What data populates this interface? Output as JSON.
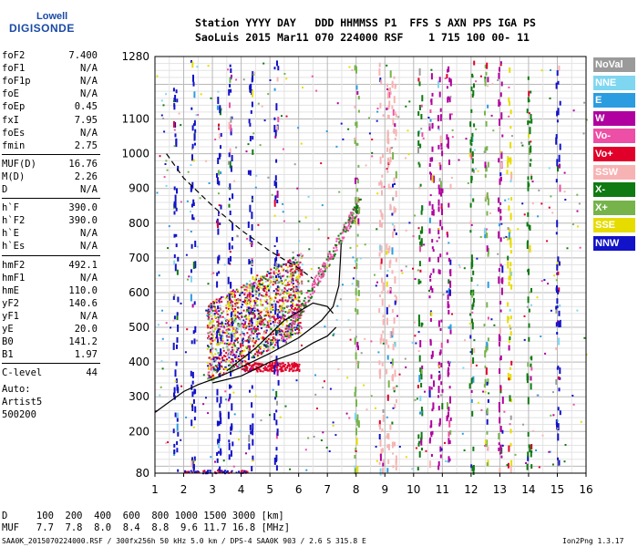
{
  "logo": {
    "line1": "Lowell",
    "line2": "DIGISONDE"
  },
  "header": {
    "row1": "Station YYYY DAY   DDD HHMMSS P1  FFS S AXN PPS IGA PS",
    "row2": "SaoLuis 2015 Mar11 070 224000 RSF    1 715 100 00- 11"
  },
  "params": [
    {
      "label": "foF2",
      "value": "7.400"
    },
    {
      "label": "foF1",
      "value": "N/A"
    },
    {
      "label": "foF1p",
      "value": "N/A"
    },
    {
      "label": "foE",
      "value": "N/A"
    },
    {
      "label": "foEp",
      "value": "0.45"
    },
    {
      "label": "fxI",
      "value": "7.95"
    },
    {
      "label": "foEs",
      "value": "N/A"
    },
    {
      "label": "fmin",
      "value": "2.75"
    },
    {
      "label": "MUF(D)",
      "value": "16.76"
    },
    {
      "label": "M(D)",
      "value": "2.26"
    },
    {
      "label": "D",
      "value": "N/A"
    },
    {
      "label": "h`F",
      "value": "390.0"
    },
    {
      "label": "h`F2",
      "value": "390.0"
    },
    {
      "label": "h`E",
      "value": "N/A"
    },
    {
      "label": "h`Es",
      "value": "N/A"
    },
    {
      "label": "hmF2",
      "value": "492.1"
    },
    {
      "label": "hmF1",
      "value": "N/A"
    },
    {
      "label": "hmE",
      "value": "110.0"
    },
    {
      "label": "yF2",
      "value": "140.6"
    },
    {
      "label": "yF1",
      "value": "N/A"
    },
    {
      "label": "yE",
      "value": "20.0"
    },
    {
      "label": "B0",
      "value": "141.2"
    },
    {
      "label": "B1",
      "value": "1.97"
    },
    {
      "label": "C-level",
      "value": "44"
    }
  ],
  "autoscaling": {
    "line1": "Auto:",
    "line2": "Artist5",
    "line3": "500200"
  },
  "legend": [
    {
      "label": "NoVal",
      "color": "#9a9a9a"
    },
    {
      "label": "NNE",
      "color": "#7fd6f0"
    },
    {
      "label": "E",
      "color": "#2b9ce0"
    },
    {
      "label": "W",
      "color": "#b0009f"
    },
    {
      "label": "Vo-",
      "color": "#ee4fa6"
    },
    {
      "label": "Vo+",
      "color": "#e0002a"
    },
    {
      "label": "SSW",
      "color": "#f7b3b3"
    },
    {
      "label": "X-",
      "color": "#0f7a12"
    },
    {
      "label": "X+",
      "color": "#76b44b"
    },
    {
      "label": "SSE",
      "color": "#e6dc00"
    },
    {
      "label": "NNW",
      "color": "#1212c8"
    }
  ],
  "chart_data": {
    "type": "scatter",
    "x_ticks": [
      "1",
      "2",
      "3",
      "4",
      "5",
      "6",
      "7",
      "8",
      "9",
      "10",
      "11",
      "12",
      "13",
      "14",
      "15",
      "16"
    ],
    "y_ticks": [
      "80",
      "200",
      "300",
      "400",
      "500",
      "600",
      "700",
      "800",
      "900",
      "1000",
      "1100",
      "1280"
    ],
    "xlim": [
      1,
      16
    ],
    "ylim": [
      80,
      1280
    ],
    "grid": true,
    "legend_position": "right",
    "profile_curve": [
      [
        1.0,
        255
      ],
      [
        1.5,
        285
      ],
      [
        2.0,
        315
      ],
      [
        2.5,
        335
      ],
      [
        3.0,
        350
      ],
      [
        4.0,
        385
      ],
      [
        5.0,
        425
      ],
      [
        6.0,
        470
      ],
      [
        6.8,
        520
      ],
      [
        7.2,
        560
      ],
      [
        7.4,
        620
      ],
      [
        7.45,
        690
      ],
      [
        7.48,
        740
      ]
    ],
    "lower_curve": [
      [
        3.0,
        340
      ],
      [
        4.0,
        360
      ],
      [
        5.0,
        400
      ],
      [
        6.0,
        430
      ],
      [
        6.5,
        455
      ],
      [
        7.0,
        475
      ],
      [
        7.3,
        500
      ]
    ],
    "upper_curve": [
      [
        3.5,
        375
      ],
      [
        4.5,
        440
      ],
      [
        5.5,
        520
      ],
      [
        6.5,
        570
      ],
      [
        7.0,
        560
      ],
      [
        7.2,
        540
      ]
    ],
    "dashed_curve": [
      [
        1.4,
        1000
      ],
      [
        2.0,
        930
      ],
      [
        3.0,
        850
      ],
      [
        4.0,
        780
      ],
      [
        5.0,
        720
      ],
      [
        6.0,
        670
      ],
      [
        6.5,
        640
      ]
    ]
  },
  "footer": {
    "row1": "D     100  200  400  600  800 1000 1500 3000 [km]",
    "row2": "MUF   7.7  7.8  8.0  8.4  8.8  9.6 11.7 16.8 [MHz]",
    "info_left": "SAA0K_2015070224000.RSF / 300fx256h 50 kHz 5.0 km / DPS-4 SAA0K 903 / 2.6 S 315.8 E",
    "info_right": "Ion2Png 1.3.17"
  }
}
